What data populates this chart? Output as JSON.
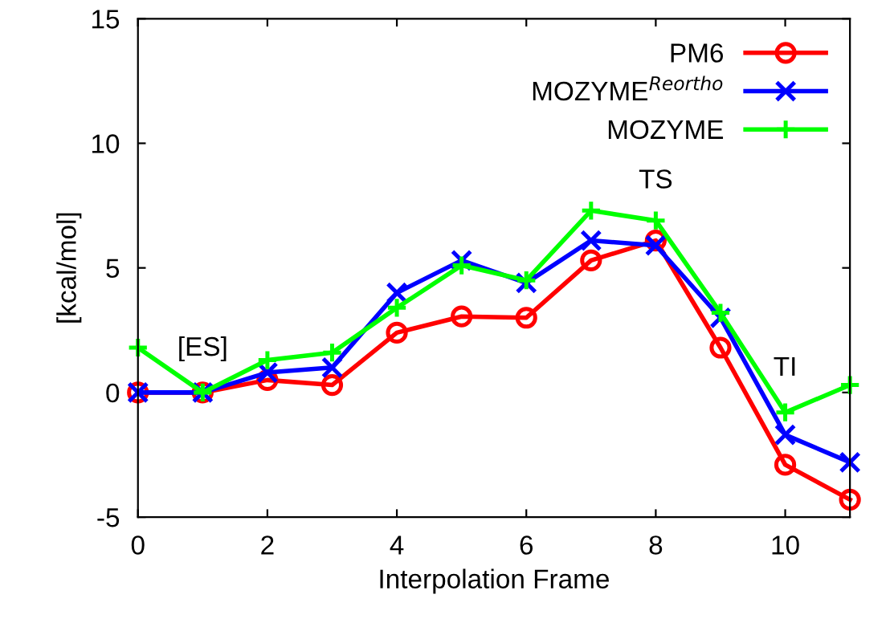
{
  "chart_data": {
    "type": "line",
    "xlabel": "Interpolation Frame",
    "ylabel": "[kcal/mol]",
    "x": [
      0,
      1,
      2,
      3,
      4,
      5,
      6,
      7,
      8,
      9,
      10,
      11
    ],
    "series": [
      {
        "name": "PM6",
        "color": "#ff0000",
        "marker": "circle",
        "values": [
          0,
          0,
          0.5,
          0.3,
          2.4,
          3.05,
          3.0,
          5.3,
          6.1,
          1.8,
          -2.9,
          -4.3
        ]
      },
      {
        "name": "MOZYME$^{Reortho}$",
        "color": "#0000ff",
        "marker": "cross",
        "values": [
          0,
          0,
          0.8,
          1.0,
          4.0,
          5.3,
          4.4,
          6.1,
          5.9,
          3.0,
          -1.7,
          -2.8
        ]
      },
      {
        "name": "MOZYME",
        "color": "#00ff00",
        "marker": "plus",
        "values": [
          1.8,
          0,
          1.3,
          1.6,
          3.4,
          5.1,
          4.5,
          7.3,
          6.9,
          3.2,
          -0.8,
          0.3
        ]
      }
    ],
    "annotations": [
      {
        "text": "[ES]",
        "x": 1,
        "y": 0
      },
      {
        "text": "TS",
        "x": 8,
        "y": 6.9
      },
      {
        "text": "TI",
        "x": 10,
        "y": -0.8
      }
    ],
    "xlim": [
      0,
      11
    ],
    "xticks": [
      0,
      2,
      4,
      6,
      8,
      10
    ],
    "ylim": [
      -5,
      15
    ],
    "yticks": [
      -5,
      0,
      5,
      10,
      15
    ],
    "legend": "top right",
    "grid": false,
    "line_style": "solid"
  }
}
